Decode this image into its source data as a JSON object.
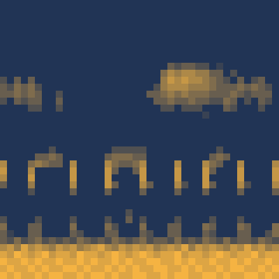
{
  "chart_data": {
    "type": "heatmap",
    "tick_labels": false,
    "zlim": [
      0,
      9
    ],
    "colors": [
      "#213455",
      "#f5b342"
    ],
    "cells": [
      [
        0,
        0,
        0,
        0,
        0,
        0,
        0,
        0,
        0,
        0,
        0,
        0,
        0,
        0,
        0,
        0,
        0,
        0,
        0,
        0,
        0,
        0,
        0,
        0,
        0,
        0,
        0,
        0,
        0,
        0,
        0,
        0,
        0,
        0,
        0,
        0,
        0,
        0,
        0,
        0
      ],
      [
        0,
        0,
        0,
        0,
        0,
        0,
        0,
        0,
        0,
        0,
        0,
        0,
        0,
        0,
        0,
        0,
        0,
        0,
        0,
        0,
        0,
        0,
        0,
        0,
        0,
        0,
        0,
        0,
        0,
        0,
        0,
        0,
        0,
        0,
        0,
        0,
        0,
        0,
        0,
        0
      ],
      [
        0,
        0,
        0,
        0,
        0,
        0,
        0,
        0,
        0,
        0,
        0,
        0,
        0,
        0,
        0,
        0,
        0,
        0,
        0,
        0,
        0,
        0,
        0,
        0,
        0,
        0,
        0,
        0,
        0,
        0,
        0,
        0,
        0,
        0,
        0,
        0,
        0,
        0,
        0,
        0
      ],
      [
        0,
        0,
        0,
        0,
        0,
        0,
        0,
        0,
        0,
        0,
        0,
        0,
        0,
        0,
        0,
        0,
        0,
        0,
        0,
        0,
        0,
        0,
        0,
        0,
        0,
        0,
        0,
        0,
        0,
        0,
        0,
        0,
        0,
        0,
        0,
        0,
        0,
        0,
        0,
        0
      ],
      [
        0,
        0,
        0,
        0,
        0,
        0,
        0,
        0,
        0,
        0,
        0,
        0,
        0,
        0,
        0,
        0,
        0,
        0,
        0,
        0,
        0,
        0,
        0,
        0,
        0,
        0,
        0,
        0,
        0,
        0,
        0,
        0,
        0,
        0,
        0,
        0,
        0,
        0,
        0,
        0
      ],
      [
        0,
        0,
        0,
        0,
        0,
        0,
        0,
        0,
        0,
        0,
        0,
        0,
        0,
        0,
        0,
        0,
        0,
        0,
        0,
        0,
        0,
        0,
        0,
        0,
        0,
        0,
        0,
        0,
        0,
        0,
        0,
        0,
        0,
        0,
        0,
        0,
        0,
        0,
        0,
        0
      ],
      [
        0,
        0,
        0,
        0,
        0,
        0,
        0,
        0,
        0,
        0,
        0,
        0,
        0,
        0,
        0,
        0,
        0,
        0,
        0,
        0,
        0,
        0,
        0,
        0,
        0,
        0,
        0,
        0,
        0,
        0,
        0,
        0,
        0,
        0,
        0,
        0,
        0,
        0,
        0,
        0
      ],
      [
        0,
        0,
        0,
        0,
        0,
        0,
        0,
        0,
        0,
        0,
        0,
        0,
        0,
        0,
        0,
        0,
        0,
        0,
        0,
        0,
        0,
        0,
        0,
        0,
        0,
        0,
        0,
        0,
        0,
        0,
        0,
        0,
        0,
        0,
        0,
        0,
        0,
        0,
        0,
        0
      ],
      [
        0,
        0,
        0,
        0,
        0,
        0,
        0,
        0,
        0,
        0,
        0,
        0,
        0,
        0,
        0,
        0,
        0,
        0,
        0,
        0,
        0,
        0,
        0,
        0,
        0,
        0,
        0,
        0,
        0,
        0,
        0,
        0,
        0,
        0,
        0,
        0,
        0,
        0,
        0,
        0
      ],
      [
        0,
        0,
        0,
        0,
        0,
        0,
        0,
        0,
        0,
        0,
        0,
        0,
        0,
        0,
        0,
        0,
        0,
        0,
        0,
        0,
        0,
        0,
        0,
        0,
        3,
        2,
        3,
        3,
        2,
        2,
        0,
        1,
        0,
        0,
        0,
        0,
        0,
        0,
        0,
        0
      ],
      [
        0,
        0,
        0,
        0,
        0,
        0,
        0,
        0,
        0,
        0,
        0,
        0,
        0,
        0,
        0,
        0,
        0,
        0,
        0,
        0,
        0,
        0,
        0,
        4,
        6,
        5,
        6,
        6,
        5,
        5,
        3,
        3,
        0,
        2,
        0,
        0,
        0,
        0,
        0,
        0
      ],
      [
        2,
        0,
        3,
        0,
        3,
        0,
        0,
        0,
        0,
        0,
        0,
        0,
        0,
        0,
        0,
        0,
        0,
        0,
        0,
        0,
        0,
        0,
        0,
        5,
        7,
        6,
        7,
        6,
        6,
        5,
        4,
        3,
        2,
        0,
        3,
        0,
        2,
        3,
        0,
        0
      ],
      [
        3,
        2,
        4,
        3,
        4,
        2,
        0,
        0,
        0,
        0,
        0,
        0,
        0,
        0,
        0,
        0,
        0,
        0,
        0,
        0,
        0,
        0,
        2,
        5,
        6,
        6,
        6,
        5,
        5,
        5,
        4,
        3,
        3,
        3,
        4,
        3,
        4,
        3,
        2,
        0
      ],
      [
        3,
        3,
        4,
        3,
        4,
        3,
        0,
        0,
        2,
        0,
        0,
        0,
        0,
        0,
        0,
        0,
        0,
        0,
        0,
        0,
        0,
        3,
        3,
        4,
        5,
        4,
        5,
        4,
        4,
        4,
        3,
        3,
        3,
        4,
        3,
        2,
        3,
        3,
        3,
        0
      ],
      [
        2,
        0,
        3,
        2,
        3,
        3,
        0,
        0,
        3,
        0,
        0,
        0,
        0,
        0,
        0,
        0,
        0,
        0,
        0,
        0,
        0,
        0,
        3,
        3,
        4,
        3,
        3,
        4,
        3,
        3,
        2,
        2,
        4,
        3,
        0,
        2,
        0,
        3,
        2,
        0
      ],
      [
        0,
        0,
        0,
        0,
        2,
        2,
        0,
        0,
        2,
        0,
        0,
        0,
        0,
        0,
        0,
        0,
        0,
        0,
        0,
        0,
        0,
        0,
        0,
        2,
        2,
        0,
        2,
        2,
        2,
        0,
        0,
        0,
        3,
        2,
        0,
        0,
        0,
        2,
        0,
        0
      ],
      [
        0,
        0,
        0,
        0,
        0,
        0,
        0,
        0,
        0,
        0,
        0,
        0,
        0,
        0,
        0,
        0,
        0,
        0,
        0,
        0,
        0,
        0,
        0,
        0,
        0,
        0,
        0,
        0,
        0,
        1,
        0,
        0,
        0,
        0,
        0,
        0,
        0,
        0,
        0,
        0
      ],
      [
        0,
        0,
        0,
        0,
        0,
        0,
        0,
        0,
        0,
        0,
        0,
        0,
        0,
        0,
        0,
        0,
        0,
        0,
        0,
        0,
        0,
        0,
        0,
        0,
        0,
        0,
        0,
        0,
        0,
        0,
        0,
        0,
        0,
        0,
        0,
        0,
        0,
        0,
        0,
        0
      ],
      [
        0,
        0,
        0,
        0,
        0,
        0,
        0,
        0,
        0,
        0,
        0,
        0,
        0,
        0,
        0,
        0,
        0,
        0,
        0,
        0,
        0,
        0,
        0,
        0,
        0,
        0,
        0,
        0,
        0,
        0,
        0,
        0,
        0,
        0,
        0,
        0,
        0,
        0,
        0,
        0
      ],
      [
        0,
        0,
        0,
        0,
        0,
        0,
        0,
        0,
        0,
        0,
        0,
        0,
        0,
        0,
        0,
        0,
        0,
        0,
        0,
        0,
        0,
        0,
        0,
        0,
        0,
        0,
        0,
        0,
        0,
        0,
        0,
        0,
        0,
        0,
        0,
        0,
        0,
        0,
        0,
        0
      ],
      [
        0,
        0,
        0,
        0,
        0,
        0,
        0,
        0,
        0,
        0,
        0,
        0,
        0,
        0,
        0,
        0,
        0,
        0,
        0,
        0,
        0,
        0,
        0,
        0,
        0,
        0,
        0,
        0,
        0,
        0,
        0,
        0,
        0,
        0,
        0,
        0,
        0,
        0,
        0,
        0
      ],
      [
        0,
        0,
        0,
        0,
        0,
        0,
        0,
        2,
        0,
        0,
        0,
        0,
        0,
        0,
        0,
        0,
        2,
        2,
        2,
        2,
        2,
        0,
        0,
        0,
        0,
        0,
        0,
        0,
        0,
        0,
        0,
        2,
        0,
        0,
        0,
        0,
        0,
        0,
        0,
        0
      ],
      [
        0,
        0,
        0,
        0,
        0,
        3,
        3,
        4,
        3,
        0,
        0,
        0,
        0,
        0,
        0,
        3,
        4,
        4,
        4,
        3,
        3,
        0,
        0,
        0,
        0,
        0,
        0,
        0,
        0,
        0,
        3,
        4,
        3,
        0,
        0,
        0,
        0,
        0,
        0,
        0
      ],
      [
        6,
        0,
        0,
        0,
        4,
        5,
        4,
        3,
        3,
        0,
        6,
        0,
        0,
        0,
        0,
        6,
        4,
        3,
        3,
        4,
        6,
        0,
        0,
        0,
        0,
        6,
        0,
        0,
        0,
        6,
        4,
        3,
        0,
        0,
        6,
        0,
        0,
        0,
        0,
        6
      ],
      [
        7,
        0,
        0,
        0,
        6,
        0,
        0,
        0,
        0,
        0,
        7,
        0,
        0,
        0,
        0,
        7,
        3,
        0,
        0,
        3,
        7,
        0,
        0,
        0,
        0,
        7,
        0,
        0,
        0,
        7,
        3,
        0,
        0,
        0,
        7,
        0,
        0,
        0,
        0,
        7
      ],
      [
        6,
        0,
        0,
        0,
        7,
        0,
        0,
        0,
        0,
        0,
        7,
        0,
        0,
        0,
        0,
        7,
        0,
        0,
        0,
        0,
        7,
        0,
        0,
        0,
        0,
        7,
        0,
        0,
        0,
        7,
        0,
        0,
        0,
        0,
        7,
        0,
        0,
        0,
        0,
        7
      ],
      [
        3,
        0,
        0,
        0,
        5,
        0,
        0,
        0,
        0,
        0,
        6,
        0,
        0,
        0,
        0,
        7,
        3,
        0,
        0,
        0,
        6,
        3,
        0,
        0,
        0,
        6,
        2,
        0,
        0,
        7,
        3,
        0,
        0,
        0,
        6,
        2,
        0,
        0,
        0,
        6
      ],
      [
        0,
        0,
        0,
        0,
        2,
        0,
        0,
        0,
        0,
        0,
        3,
        0,
        0,
        0,
        0,
        3,
        0,
        0,
        0,
        0,
        3,
        0,
        0,
        0,
        0,
        3,
        0,
        0,
        0,
        3,
        0,
        0,
        0,
        0,
        3,
        0,
        0,
        0,
        0,
        3
      ],
      [
        0,
        0,
        0,
        0,
        0,
        0,
        0,
        0,
        0,
        0,
        0,
        0,
        0,
        0,
        0,
        0,
        0,
        0,
        0,
        0,
        0,
        0,
        0,
        0,
        0,
        0,
        0,
        0,
        0,
        0,
        0,
        0,
        0,
        0,
        0,
        0,
        0,
        0,
        0,
        0
      ],
      [
        0,
        0,
        0,
        0,
        0,
        0,
        0,
        0,
        0,
        0,
        0,
        0,
        0,
        0,
        0,
        0,
        0,
        0,
        0,
        0,
        0,
        0,
        0,
        0,
        0,
        0,
        0,
        0,
        0,
        0,
        0,
        0,
        0,
        0,
        0,
        0,
        0,
        0,
        0,
        0
      ],
      [
        0,
        0,
        0,
        0,
        0,
        0,
        0,
        0,
        0,
        0,
        0,
        0,
        0,
        0,
        0,
        0,
        0,
        0,
        2,
        0,
        0,
        0,
        0,
        0,
        0,
        0,
        0,
        0,
        0,
        0,
        0,
        0,
        0,
        0,
        0,
        0,
        0,
        0,
        0,
        0
      ],
      [
        2,
        0,
        0,
        0,
        0,
        2,
        0,
        0,
        0,
        0,
        2,
        0,
        0,
        0,
        0,
        2,
        0,
        0,
        3,
        0,
        2,
        0,
        0,
        0,
        0,
        2,
        0,
        0,
        0,
        0,
        2,
        0,
        0,
        0,
        2,
        0,
        0,
        0,
        0,
        0
      ],
      [
        4,
        0,
        0,
        0,
        3,
        3,
        0,
        0,
        0,
        0,
        4,
        0,
        0,
        0,
        0,
        4,
        2,
        0,
        0,
        0,
        4,
        0,
        0,
        0,
        3,
        3,
        0,
        0,
        0,
        4,
        3,
        0,
        0,
        0,
        4,
        3,
        0,
        0,
        0,
        4
      ],
      [
        3,
        1,
        0,
        0,
        3,
        3,
        0,
        0,
        0,
        0,
        3,
        2,
        0,
        0,
        0,
        3,
        3,
        0,
        0,
        0,
        3,
        2,
        0,
        0,
        3,
        3,
        0,
        0,
        0,
        3,
        2,
        0,
        0,
        0,
        3,
        3,
        0,
        0,
        2,
        4
      ],
      [
        3,
        2,
        4,
        2,
        3,
        4,
        2,
        3,
        2,
        3,
        2,
        4,
        3,
        2,
        3,
        2,
        4,
        3,
        2,
        3,
        4,
        2,
        3,
        3,
        2,
        4,
        2,
        3,
        2,
        4,
        3,
        2,
        4,
        2,
        3,
        3,
        2,
        4,
        3,
        2
      ],
      [
        6,
        7,
        5,
        8,
        6,
        7,
        6,
        5,
        7,
        6,
        7,
        5,
        6,
        7,
        8,
        6,
        5,
        7,
        6,
        7,
        6,
        7,
        5,
        6,
        7,
        6,
        8,
        5,
        7,
        6,
        7,
        6,
        5,
        7,
        6,
        8,
        6,
        7,
        5,
        6
      ],
      [
        8,
        7,
        9,
        8,
        7,
        8,
        9,
        7,
        8,
        8,
        7,
        9,
        8,
        8,
        7,
        8,
        9,
        8,
        7,
        8,
        9,
        8,
        7,
        8,
        8,
        9,
        7,
        8,
        8,
        7,
        8,
        9,
        8,
        7,
        8,
        8,
        9,
        7,
        8,
        8
      ],
      [
        9,
        8,
        8,
        9,
        8,
        9,
        8,
        8,
        9,
        8,
        8,
        9,
        8,
        9,
        8,
        8,
        9,
        8,
        9,
        8,
        8,
        9,
        9,
        8,
        8,
        9,
        8,
        9,
        8,
        8,
        9,
        8,
        8,
        9,
        8,
        9,
        8,
        8,
        9,
        8
      ],
      [
        8,
        9,
        8,
        8,
        9,
        8,
        9,
        8,
        8,
        9,
        9,
        8,
        9,
        8,
        8,
        9,
        8,
        9,
        8,
        9,
        8,
        8,
        9,
        9,
        8,
        8,
        9,
        8,
        9,
        8,
        8,
        9,
        8,
        9,
        9,
        8,
        8,
        9,
        8,
        9
      ],
      [
        9,
        8,
        9,
        8,
        8,
        9,
        8,
        9,
        9,
        8,
        8,
        9,
        8,
        9,
        9,
        8,
        9,
        8,
        8,
        9,
        9,
        8,
        8,
        9,
        8,
        9,
        9,
        8,
        8,
        9,
        9,
        8,
        9,
        8,
        8,
        9,
        9,
        8,
        9,
        8
      ]
    ]
  }
}
